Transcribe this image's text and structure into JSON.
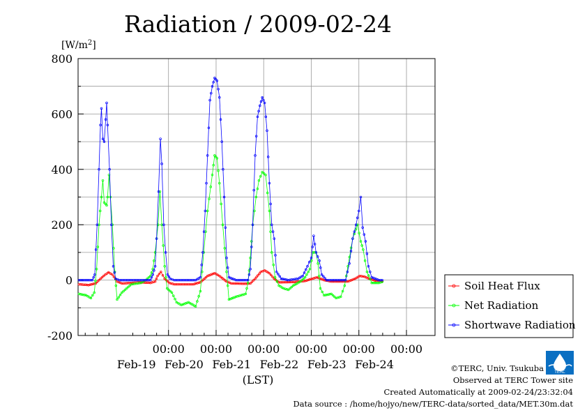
{
  "chart_data": {
    "type": "line",
    "title": "Radiation / 2009-02-24",
    "ylabel": "[W/m",
    "ylabel_sup": "2",
    "ylabel_close": "]",
    "xlabel": "(LST)",
    "ylim": [
      -200,
      800
    ],
    "yticks": [
      -200,
      0,
      200,
      400,
      600,
      800
    ],
    "ytick_labels": [
      "-200",
      "0",
      "200",
      "400",
      "600",
      "800"
    ],
    "xlim": [
      0,
      6
    ],
    "x_unit": "days after 2009-02-18 21:00 LST",
    "xtick_labels": [
      {
        "x": 1,
        "time": "00:00",
        "date": "Feb-19"
      },
      {
        "x": 2,
        "time": "00:00",
        "date": "Feb-20"
      },
      {
        "x": 3,
        "time": "00:00",
        "date": "Feb-21"
      },
      {
        "x": 4,
        "time": "00:00",
        "date": "Feb-22"
      },
      {
        "x": 5,
        "time": "00:00",
        "date": "Feb-23"
      },
      {
        "x": 6,
        "time": "00:00",
        "date": "Feb-24"
      }
    ],
    "grid": true,
    "legend_position": "right",
    "series": [
      {
        "name": "Soil Heat Flux",
        "color": "#ff0000",
        "points": [
          [
            0,
            -15
          ],
          [
            0.2,
            -18
          ],
          [
            0.35,
            -12
          ],
          [
            0.45,
            5
          ],
          [
            0.55,
            20
          ],
          [
            0.62,
            28
          ],
          [
            0.7,
            20
          ],
          [
            0.8,
            -5
          ],
          [
            0.9,
            -12
          ],
          [
            1.1,
            -10
          ],
          [
            1.3,
            -8
          ],
          [
            1.5,
            -10
          ],
          [
            1.6,
            -5
          ],
          [
            1.65,
            15
          ],
          [
            1.72,
            30
          ],
          [
            1.8,
            5
          ],
          [
            1.9,
            -10
          ],
          [
            2.0,
            -15
          ],
          [
            2.4,
            -15
          ],
          [
            2.55,
            -8
          ],
          [
            2.7,
            15
          ],
          [
            2.85,
            25
          ],
          [
            2.95,
            15
          ],
          [
            3.1,
            -5
          ],
          [
            3.2,
            -12
          ],
          [
            3.5,
            -13
          ],
          [
            3.6,
            -12
          ],
          [
            3.7,
            5
          ],
          [
            3.82,
            30
          ],
          [
            3.9,
            35
          ],
          [
            4.0,
            25
          ],
          [
            4.1,
            5
          ],
          [
            4.2,
            -8
          ],
          [
            4.5,
            -7
          ],
          [
            4.75,
            -3
          ],
          [
            4.9,
            5
          ],
          [
            5.0,
            10
          ],
          [
            5.15,
            0
          ],
          [
            5.3,
            -5
          ],
          [
            5.65,
            -5
          ],
          [
            5.8,
            5
          ],
          [
            5.9,
            15
          ],
          [
            6.0,
            12
          ],
          [
            6.1,
            5
          ],
          [
            6.25,
            -3
          ],
          [
            6.4,
            -5
          ]
        ]
      },
      {
        "name": "Net Radiation",
        "color": "#00ff00",
        "points": [
          [
            0,
            -50
          ],
          [
            0.15,
            -55
          ],
          [
            0.25,
            -65
          ],
          [
            0.32,
            -45
          ],
          [
            0.37,
            40
          ],
          [
            0.42,
            200
          ],
          [
            0.47,
            300
          ],
          [
            0.5,
            360
          ],
          [
            0.53,
            280
          ],
          [
            0.58,
            270
          ],
          [
            0.6,
            300
          ],
          [
            0.63,
            380
          ],
          [
            0.66,
            300
          ],
          [
            0.7,
            200
          ],
          [
            0.75,
            30
          ],
          [
            0.8,
            -70
          ],
          [
            0.9,
            -45
          ],
          [
            1.0,
            -30
          ],
          [
            1.1,
            -15
          ],
          [
            1.3,
            -10
          ],
          [
            1.4,
            0
          ],
          [
            1.5,
            15
          ],
          [
            1.55,
            40
          ],
          [
            1.6,
            100
          ],
          [
            1.66,
            200
          ],
          [
            1.7,
            320
          ],
          [
            1.74,
            200
          ],
          [
            1.8,
            50
          ],
          [
            1.85,
            -30
          ],
          [
            1.95,
            -45
          ],
          [
            2.05,
            -80
          ],
          [
            2.15,
            -90
          ],
          [
            2.3,
            -80
          ],
          [
            2.45,
            -95
          ],
          [
            2.55,
            -40
          ],
          [
            2.62,
            100
          ],
          [
            2.7,
            250
          ],
          [
            2.8,
            380
          ],
          [
            2.85,
            450
          ],
          [
            2.9,
            440
          ],
          [
            2.95,
            350
          ],
          [
            3.02,
            200
          ],
          [
            3.1,
            30
          ],
          [
            3.15,
            -70
          ],
          [
            3.3,
            -60
          ],
          [
            3.5,
            -50
          ],
          [
            3.55,
            -10
          ],
          [
            3.6,
            80
          ],
          [
            3.65,
            200
          ],
          [
            3.72,
            300
          ],
          [
            3.78,
            360
          ],
          [
            3.85,
            390
          ],
          [
            3.92,
            380
          ],
          [
            4.0,
            250
          ],
          [
            4.05,
            100
          ],
          [
            4.12,
            10
          ],
          [
            4.2,
            -20
          ],
          [
            4.3,
            -30
          ],
          [
            4.4,
            -35
          ],
          [
            4.5,
            -20
          ],
          [
            4.65,
            -5
          ],
          [
            4.75,
            10
          ],
          [
            4.85,
            40
          ],
          [
            4.92,
            100
          ],
          [
            4.98,
            100
          ],
          [
            5.02,
            60
          ],
          [
            5.07,
            -30
          ],
          [
            5.15,
            -55
          ],
          [
            5.3,
            -50
          ],
          [
            5.4,
            -65
          ],
          [
            5.5,
            -60
          ],
          [
            5.58,
            -20
          ],
          [
            5.65,
            50
          ],
          [
            5.75,
            150
          ],
          [
            5.85,
            200
          ],
          [
            5.92,
            140
          ],
          [
            5.97,
            110
          ],
          [
            6.05,
            30
          ],
          [
            6.15,
            -10
          ],
          [
            6.3,
            -10
          ],
          [
            6.4,
            -5
          ]
        ]
      },
      {
        "name": "Shortwave Radiation",
        "color": "#0000ff",
        "points": [
          [
            0,
            0
          ],
          [
            0.28,
            0
          ],
          [
            0.33,
            20
          ],
          [
            0.38,
            200
          ],
          [
            0.42,
            400
          ],
          [
            0.45,
            560
          ],
          [
            0.47,
            620
          ],
          [
            0.5,
            510
          ],
          [
            0.53,
            500
          ],
          [
            0.56,
            580
          ],
          [
            0.58,
            640
          ],
          [
            0.6,
            560
          ],
          [
            0.64,
            400
          ],
          [
            0.68,
            200
          ],
          [
            0.72,
            50
          ],
          [
            0.77,
            5
          ],
          [
            0.85,
            0
          ],
          [
            1.5,
            0
          ],
          [
            1.55,
            20
          ],
          [
            1.6,
            50
          ],
          [
            1.63,
            150
          ],
          [
            1.67,
            320
          ],
          [
            1.71,
            510
          ],
          [
            1.74,
            420
          ],
          [
            1.78,
            200
          ],
          [
            1.82,
            100
          ],
          [
            1.86,
            20
          ],
          [
            1.92,
            5
          ],
          [
            2.0,
            0
          ],
          [
            2.45,
            0
          ],
          [
            2.55,
            10
          ],
          [
            2.6,
            100
          ],
          [
            2.65,
            250
          ],
          [
            2.7,
            450
          ],
          [
            2.75,
            650
          ],
          [
            2.8,
            700
          ],
          [
            2.85,
            730
          ],
          [
            2.9,
            720
          ],
          [
            2.95,
            660
          ],
          [
            3.0,
            500
          ],
          [
            3.05,
            300
          ],
          [
            3.1,
            80
          ],
          [
            3.15,
            10
          ],
          [
            3.3,
            0
          ],
          [
            3.55,
            0
          ],
          [
            3.6,
            40
          ],
          [
            3.65,
            200
          ],
          [
            3.7,
            450
          ],
          [
            3.75,
            590
          ],
          [
            3.8,
            630
          ],
          [
            3.85,
            660
          ],
          [
            3.9,
            640
          ],
          [
            3.95,
            540
          ],
          [
            4.0,
            350
          ],
          [
            4.05,
            200
          ],
          [
            4.1,
            150
          ],
          [
            4.15,
            30
          ],
          [
            4.25,
            5
          ],
          [
            4.4,
            0
          ],
          [
            4.6,
            5
          ],
          [
            4.7,
            15
          ],
          [
            4.8,
            50
          ],
          [
            4.88,
            80
          ],
          [
            4.93,
            160
          ],
          [
            4.98,
            100
          ],
          [
            5.05,
            70
          ],
          [
            5.1,
            20
          ],
          [
            5.2,
            0
          ],
          [
            5.6,
            0
          ],
          [
            5.68,
            60
          ],
          [
            5.75,
            150
          ],
          [
            5.82,
            200
          ],
          [
            5.88,
            250
          ],
          [
            5.92,
            300
          ],
          [
            5.96,
            190
          ],
          [
            6.02,
            140
          ],
          [
            6.08,
            50
          ],
          [
            6.15,
            10
          ],
          [
            6.3,
            0
          ],
          [
            6.4,
            0
          ]
        ]
      }
    ]
  },
  "credits": {
    "copyright": "©TERC, Univ. Tsukuba",
    "observed": "Observed at TERC Tower site",
    "created": "Created Automatically at 2009-02-24/23:32:04",
    "source": "Data source : /home/hojyo/new/TERC-data/sorted_data/MET.30m.dat",
    "logo_text": "TERC"
  }
}
